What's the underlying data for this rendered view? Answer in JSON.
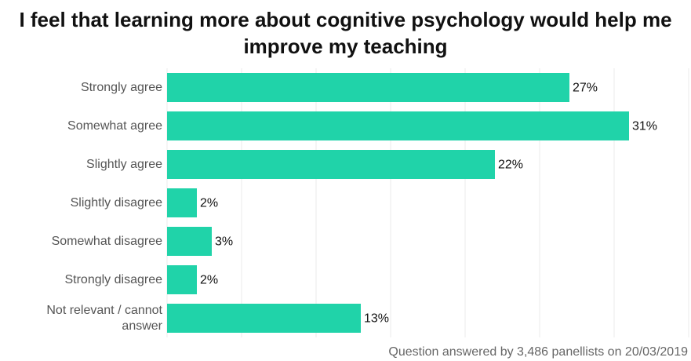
{
  "chart_data": {
    "type": "barh",
    "title": "I feel that learning more about cognitive psychology would help me improve my teaching",
    "categories": [
      "Strongly agree",
      "Somewhat agree",
      "Slightly agree",
      "Slightly disagree",
      "Somewhat disagree",
      "Strongly disagree",
      "Not relevant / cannot answer"
    ],
    "values": [
      27,
      31,
      22,
      2,
      3,
      2,
      13
    ],
    "value_labels": [
      "27%",
      "31%",
      "22%",
      "2%",
      "3%",
      "2%",
      "13%"
    ],
    "color": "#20d3a9",
    "xlim": [
      0,
      35
    ],
    "xticks": [
      0,
      5,
      10,
      15,
      20,
      25,
      30,
      35
    ],
    "grid": true,
    "caption": "Question answered by 3,486 panellists on 20/03/2019"
  }
}
